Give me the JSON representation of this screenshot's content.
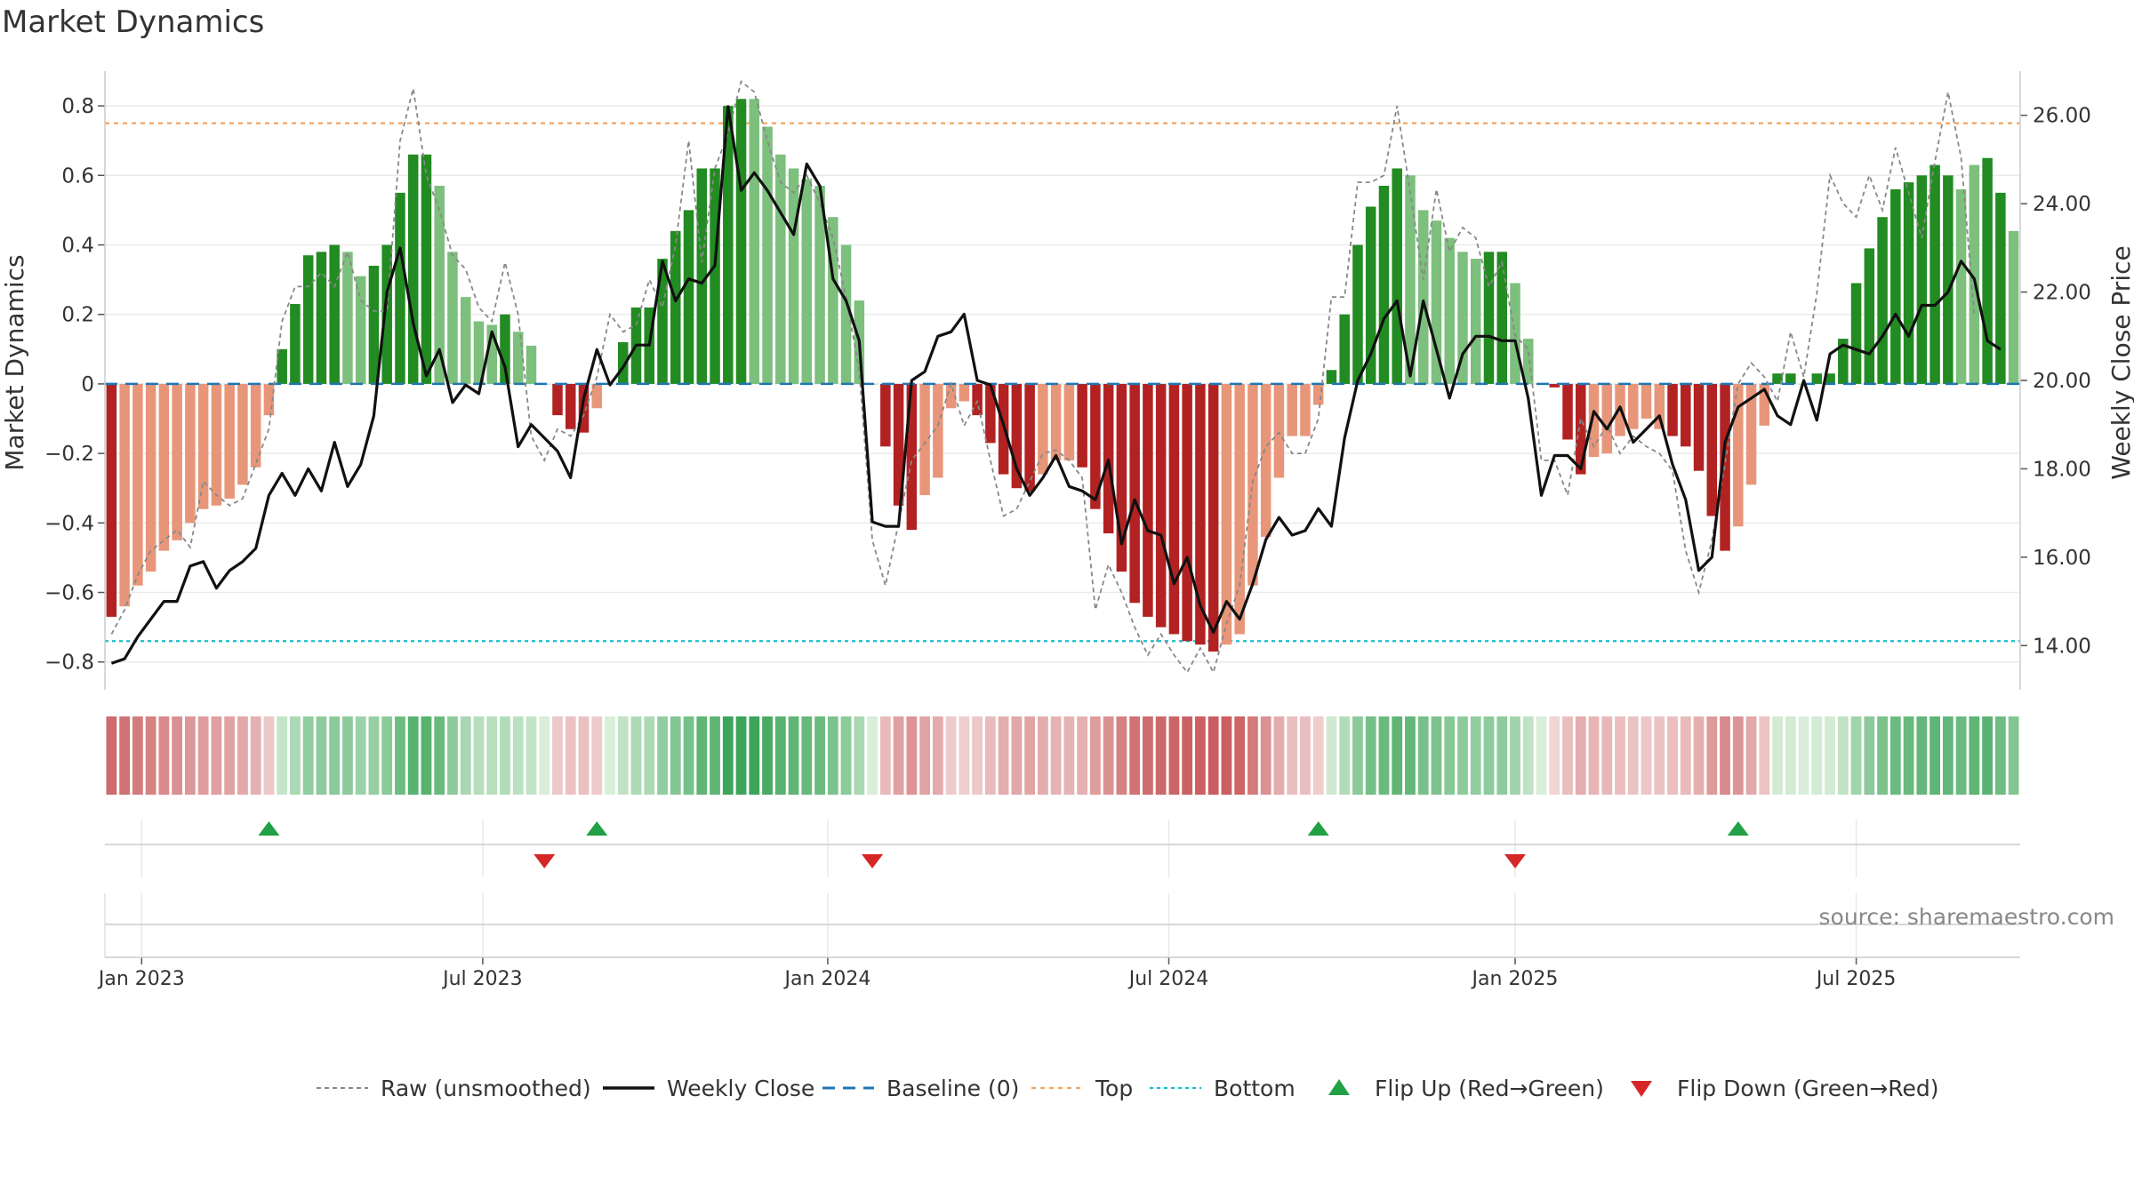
{
  "chart_data": {
    "type": "bar",
    "title": "Market Dynamics",
    "ylabel_left": "Market Dynamics",
    "ylabel_right": "Weekly Close Price",
    "source": "source: sharemaestro.com",
    "y_left": {
      "ylim": [
        -0.88,
        0.9
      ],
      "ticks": [
        -0.8,
        -0.6,
        -0.4,
        -0.2,
        0,
        0.2,
        0.4,
        0.6,
        0.8
      ],
      "tick_labels": [
        "−0.8",
        "−0.6",
        "−0.4",
        "−0.2",
        "0",
        "0.2",
        "0.4",
        "0.6",
        "0.8"
      ]
    },
    "y_right": {
      "ylim": [
        13.0,
        27.0
      ],
      "ticks": [
        14,
        16,
        18,
        20,
        22,
        24,
        26
      ],
      "tick_labels": [
        "14.00",
        "16.00",
        "18.00",
        "20.00",
        "22.00",
        "24.00",
        "26.00"
      ]
    },
    "x_ticks": [
      {
        "label": "Jan 2023",
        "week": 2.3
      },
      {
        "label": "Jul 2023",
        "week": 28.3
      },
      {
        "label": "Jan 2024",
        "week": 54.6
      },
      {
        "label": "Jul 2024",
        "week": 80.6
      },
      {
        "label": "Jan 2025",
        "week": 107.0
      },
      {
        "label": "Jul 2025",
        "week": 133.0
      }
    ],
    "top_line": 0.75,
    "bottom_line": -0.74,
    "baseline": 0,
    "grid": true,
    "legend": {
      "placement": "bottom",
      "entries": [
        "Raw (unsmoothed)",
        "Weekly Close",
        "Baseline (0)",
        "Top",
        "Bottom",
        "Flip Up (Red→Green)",
        "Flip Down (Green→Red)"
      ]
    },
    "colors": {
      "green_strong": "#228b22",
      "green_light": "#7dbf7d",
      "red_strong": "#b22222",
      "red_light": "#e8967a",
      "close_line": "#111111",
      "raw_line": "#888888",
      "baseline": "#1f77b4",
      "top": "#f4a460",
      "bottom": "#17becf",
      "flip_up": "#22a045",
      "flip_down": "#d62728"
    },
    "series": [
      {
        "name": "Market Dynamics",
        "values": [
          -0.67,
          -0.64,
          -0.58,
          -0.54,
          -0.48,
          -0.45,
          -0.4,
          -0.36,
          -0.35,
          -0.33,
          -0.29,
          -0.24,
          -0.09,
          0.1,
          0.23,
          0.37,
          0.38,
          0.4,
          0.38,
          0.31,
          0.34,
          0.4,
          0.55,
          0.66,
          0.66,
          0.57,
          0.38,
          0.25,
          0.18,
          0.17,
          0.2,
          0.15,
          0.11,
          0.0,
          -0.09,
          -0.13,
          -0.14,
          -0.07,
          0.0,
          0.12,
          0.22,
          0.22,
          0.36,
          0.44,
          0.5,
          0.62,
          0.62,
          0.8,
          0.82,
          0.82,
          0.74,
          0.66,
          0.62,
          0.59,
          0.57,
          0.48,
          0.4,
          0.24,
          0.0,
          -0.18,
          -0.35,
          -0.42,
          -0.32,
          -0.27,
          -0.07,
          -0.05,
          -0.09,
          -0.17,
          -0.26,
          -0.3,
          -0.31,
          -0.26,
          -0.22,
          -0.22,
          -0.24,
          -0.36,
          -0.43,
          -0.54,
          -0.63,
          -0.67,
          -0.7,
          -0.72,
          -0.74,
          -0.75,
          -0.77,
          -0.75,
          -0.72,
          -0.58,
          -0.44,
          -0.27,
          -0.15,
          -0.15,
          -0.06,
          0.04,
          0.2,
          0.4,
          0.51,
          0.57,
          0.62,
          0.6,
          0.5,
          0.47,
          0.42,
          0.38,
          0.36,
          0.38,
          0.38,
          0.29,
          0.13,
          0.0,
          -0.01,
          -0.16,
          -0.26,
          -0.21,
          -0.2,
          -0.15,
          -0.13,
          -0.1,
          -0.13,
          -0.15,
          -0.18,
          -0.25,
          -0.38,
          -0.48,
          -0.41,
          -0.29,
          -0.12,
          0.03,
          0.03,
          0.0,
          0.03,
          0.03,
          0.13,
          0.29,
          0.39,
          0.48,
          0.56,
          0.58,
          0.6,
          0.63,
          0.6,
          0.56,
          0.63,
          0.65,
          0.55,
          0.44
        ],
        "strength": [
          1,
          0,
          0,
          0,
          0,
          0,
          0,
          0,
          0,
          0,
          0,
          0,
          0,
          1,
          1,
          1,
          1,
          1,
          0,
          0,
          1,
          1,
          1,
          1,
          1,
          0,
          0,
          0,
          0,
          0,
          1,
          0,
          0,
          0,
          1,
          1,
          1,
          0,
          0,
          1,
          1,
          1,
          1,
          1,
          1,
          1,
          1,
          1,
          1,
          0,
          0,
          0,
          0,
          0,
          0,
          0,
          0,
          0,
          0,
          1,
          1,
          1,
          0,
          0,
          0,
          0,
          1,
          1,
          1,
          1,
          1,
          0,
          0,
          0,
          1,
          1,
          1,
          1,
          1,
          1,
          1,
          1,
          1,
          1,
          1,
          0,
          0,
          0,
          0,
          0,
          0,
          0,
          0,
          1,
          1,
          1,
          1,
          1,
          1,
          0,
          0,
          0,
          0,
          0,
          0,
          1,
          1,
          0,
          0,
          0,
          1,
          1,
          1,
          0,
          0,
          0,
          0,
          0,
          0,
          1,
          1,
          1,
          1,
          1,
          0,
          0,
          0,
          1,
          1,
          0,
          1,
          1,
          1,
          1,
          1,
          1,
          1,
          1,
          1,
          1,
          1,
          0,
          0,
          1,
          1,
          0,
          0
        ]
      },
      {
        "name": "Raw (unsmoothed)",
        "values": [
          -0.72,
          -0.65,
          -0.55,
          -0.48,
          -0.45,
          -0.42,
          -0.47,
          -0.28,
          -0.32,
          -0.35,
          -0.33,
          -0.23,
          -0.13,
          0.18,
          0.28,
          0.28,
          0.32,
          0.28,
          0.38,
          0.24,
          0.21,
          0.21,
          0.7,
          0.85,
          0.6,
          0.5,
          0.37,
          0.33,
          0.22,
          0.18,
          0.35,
          0.2,
          -0.15,
          -0.22,
          -0.13,
          -0.15,
          -0.09,
          0.02,
          0.2,
          0.15,
          0.17,
          0.3,
          0.22,
          0.4,
          0.7,
          0.35,
          0.62,
          0.72,
          0.87,
          0.84,
          0.7,
          0.58,
          0.55,
          0.6,
          0.52,
          0.42,
          0.25,
          0.04,
          -0.45,
          -0.58,
          -0.4,
          -0.22,
          -0.17,
          -0.12,
          0.0,
          -0.12,
          -0.05,
          -0.22,
          -0.38,
          -0.36,
          -0.28,
          -0.2,
          -0.19,
          -0.22,
          -0.27,
          -0.65,
          -0.52,
          -0.6,
          -0.7,
          -0.78,
          -0.72,
          -0.78,
          -0.83,
          -0.76,
          -0.83,
          -0.69,
          -0.58,
          -0.28,
          -0.18,
          -0.14,
          -0.2,
          -0.2,
          -0.1,
          0.25,
          0.25,
          0.58,
          0.58,
          0.6,
          0.8,
          0.55,
          0.3,
          0.56,
          0.38,
          0.45,
          0.42,
          0.28,
          0.35,
          0.14,
          0.1,
          -0.22,
          -0.22,
          -0.32,
          -0.1,
          -0.18,
          -0.12,
          -0.2,
          -0.15,
          -0.18,
          -0.2,
          -0.25,
          -0.48,
          -0.6,
          -0.45,
          -0.23,
          0.0,
          0.06,
          0.02,
          -0.05,
          0.15,
          0.02,
          0.26,
          0.6,
          0.52,
          0.48,
          0.6,
          0.5,
          0.68,
          0.55,
          0.42,
          0.64,
          0.84,
          0.65,
          0.2
        ]
      },
      {
        "name": "Weekly Close",
        "values": [
          13.6,
          13.7,
          14.2,
          14.6,
          15.0,
          15.0,
          15.8,
          15.9,
          15.3,
          15.7,
          15.9,
          16.2,
          17.4,
          17.9,
          17.4,
          18.0,
          17.5,
          18.6,
          17.6,
          18.1,
          19.2,
          22.0,
          23.0,
          21.3,
          20.1,
          20.7,
          19.5,
          19.9,
          19.7,
          21.1,
          20.3,
          18.5,
          19.0,
          18.7,
          18.4,
          17.8,
          19.6,
          20.7,
          19.9,
          20.3,
          20.8,
          20.8,
          22.7,
          21.8,
          22.3,
          22.2,
          22.6,
          26.2,
          24.3,
          24.7,
          24.3,
          23.8,
          23.3,
          24.9,
          24.4,
          22.3,
          21.8,
          20.9,
          16.8,
          16.7,
          16.7,
          20.0,
          20.2,
          21.0,
          21.1,
          21.5,
          20.0,
          19.9,
          19.0,
          18.0,
          17.4,
          17.8,
          18.3,
          17.6,
          17.5,
          17.3,
          18.2,
          16.3,
          17.3,
          16.6,
          16.5,
          15.4,
          16.0,
          14.9,
          14.3,
          15.0,
          14.6,
          15.4,
          16.4,
          16.9,
          16.5,
          16.6,
          17.1,
          16.7,
          18.7,
          20.0,
          20.6,
          21.4,
          21.8,
          20.1,
          21.8,
          20.7,
          19.6,
          20.6,
          21.0,
          21.0,
          20.9,
          20.9,
          19.6,
          17.4,
          18.3,
          18.3,
          18.0,
          19.3,
          18.9,
          19.4,
          18.6,
          18.9,
          19.2,
          18.1,
          17.3,
          15.7,
          16.0,
          18.6,
          19.4,
          19.6,
          19.8,
          19.2,
          19.0,
          20.0,
          19.1,
          20.6,
          20.8,
          20.7,
          20.6,
          21.0,
          21.5,
          21.0,
          21.7,
          21.7,
          22.0,
          22.7,
          22.3,
          20.9,
          20.7
        ]
      }
    ],
    "flips": [
      {
        "type": "up",
        "week": 12
      },
      {
        "type": "down",
        "week": 33
      },
      {
        "type": "up",
        "week": 37
      },
      {
        "type": "down",
        "week": 58
      },
      {
        "type": "up",
        "week": 92
      },
      {
        "type": "down",
        "week": 107
      },
      {
        "type": "up",
        "week": 124
      }
    ]
  }
}
